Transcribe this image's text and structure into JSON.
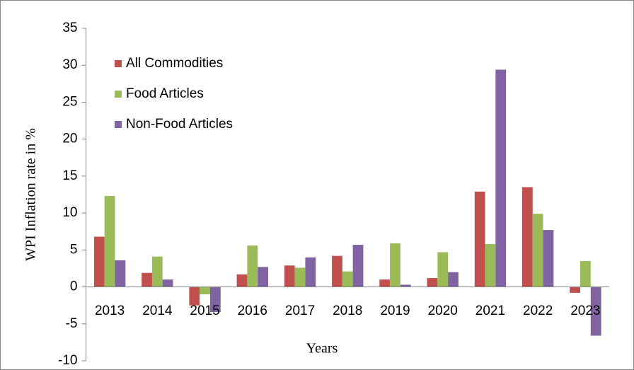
{
  "chart_data": {
    "type": "bar",
    "y_label": "WPI Inflation rate in %",
    "x_label": "Years",
    "categories": [
      "2013",
      "2014",
      "2015",
      "2016",
      "2017",
      "2018",
      "2019",
      "2020",
      "2021",
      "2022",
      "2023"
    ],
    "series": [
      {
        "name": "All Commodities",
        "color": "#c0504d",
        "values": [
          6.8,
          1.9,
          -2.5,
          1.7,
          2.9,
          4.2,
          1.0,
          1.2,
          12.9,
          13.5,
          -0.8
        ]
      },
      {
        "name": "Food Articles",
        "color": "#9bbb59",
        "values": [
          12.3,
          4.1,
          -1.0,
          5.6,
          2.6,
          2.1,
          5.9,
          4.7,
          5.8,
          9.9,
          3.5
        ]
      },
      {
        "name": "Non-Food Articles",
        "color": "#8064a2",
        "values": [
          3.6,
          1.0,
          -3.4,
          2.7,
          4.0,
          5.7,
          0.3,
          2.0,
          29.4,
          7.7,
          -6.6
        ]
      }
    ],
    "ylim": [
      -10,
      35
    ],
    "yticks": [
      -10,
      -5,
      0,
      5,
      10,
      15,
      20,
      25,
      30,
      35
    ],
    "legend": "upper left"
  }
}
